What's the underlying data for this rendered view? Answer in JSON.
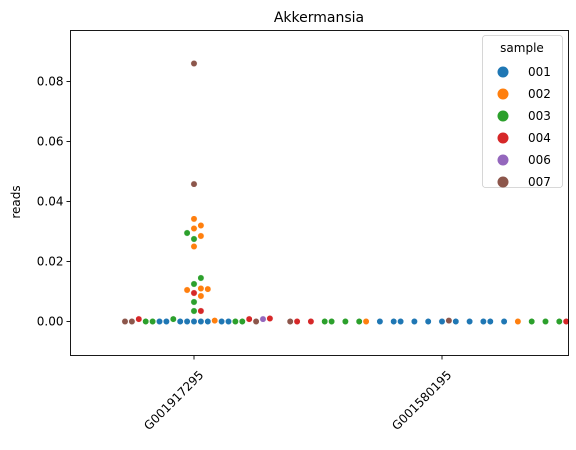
{
  "chart_data": {
    "type": "scatter",
    "subtype": "swarm",
    "title": "Akkermansia",
    "xlabel": "",
    "ylabel": "reads",
    "categories": [
      "G001917295",
      "G001580195"
    ],
    "x_tick_rotation_deg": 45,
    "ylim": [
      -0.012,
      0.098
    ],
    "yticks": [
      0.0,
      0.02,
      0.04,
      0.06,
      0.08
    ],
    "ytick_labels": [
      "0.00",
      "0.02",
      "0.04",
      "0.06",
      "0.08"
    ],
    "grid": false,
    "legend": {
      "title": "sample",
      "placement": "top-right",
      "entries": [
        "001",
        "002",
        "003",
        "004",
        "006",
        "007"
      ]
    },
    "colors": {
      "001": "#1f77b4",
      "002": "#ff7f0e",
      "003": "#2ca02c",
      "004": "#d62728",
      "006": "#9467bd",
      "007": "#8c564b"
    },
    "series": [
      {
        "name": "001",
        "points": [
          {
            "category": "G001917295",
            "values": [
              0,
              0,
              0,
              0,
              0,
              0,
              0,
              0,
              0
            ]
          },
          {
            "category": "G001580195",
            "values": [
              0,
              0,
              0,
              0,
              0,
              0,
              0,
              0,
              0,
              0,
              0
            ]
          }
        ]
      },
      {
        "name": "002",
        "points": [
          {
            "category": "G001917295",
            "values": [
              0.0342,
              0.032,
              0.031,
              0.0285,
              0.025,
              0.011,
              0.0108,
              0.0105,
              0.0085,
              0.0003
            ]
          },
          {
            "category": "G001580195",
            "values": [
              0,
              0
            ]
          }
        ]
      },
      {
        "name": "003",
        "points": [
          {
            "category": "G001917295",
            "values": [
              0.0295,
              0.0275,
              0.0145,
              0.0125,
              0.0065,
              0.0035,
              0.0008,
              0,
              0,
              0,
              0
            ]
          },
          {
            "category": "G001580195",
            "values": [
              0,
              0,
              0,
              0,
              0,
              0,
              0
            ]
          }
        ]
      },
      {
        "name": "004",
        "points": [
          {
            "category": "G001917295",
            "values": [
              0.0095,
              0.0035,
              0.001,
              0.0008,
              0.0008
            ]
          },
          {
            "category": "G001580195",
            "values": [
              0,
              0,
              0,
              0
            ]
          }
        ]
      },
      {
        "name": "006",
        "points": [
          {
            "category": "G001917295",
            "values": [
              0.0008
            ]
          },
          {
            "category": "G001580195",
            "values": [
              0
            ]
          }
        ]
      },
      {
        "name": "007",
        "points": [
          {
            "category": "G001917295",
            "values": [
              0.086,
              0.0458,
              0,
              0,
              0
            ]
          },
          {
            "category": "G001580195",
            "values": [
              0.0003,
              0
            ]
          }
        ]
      }
    ]
  }
}
